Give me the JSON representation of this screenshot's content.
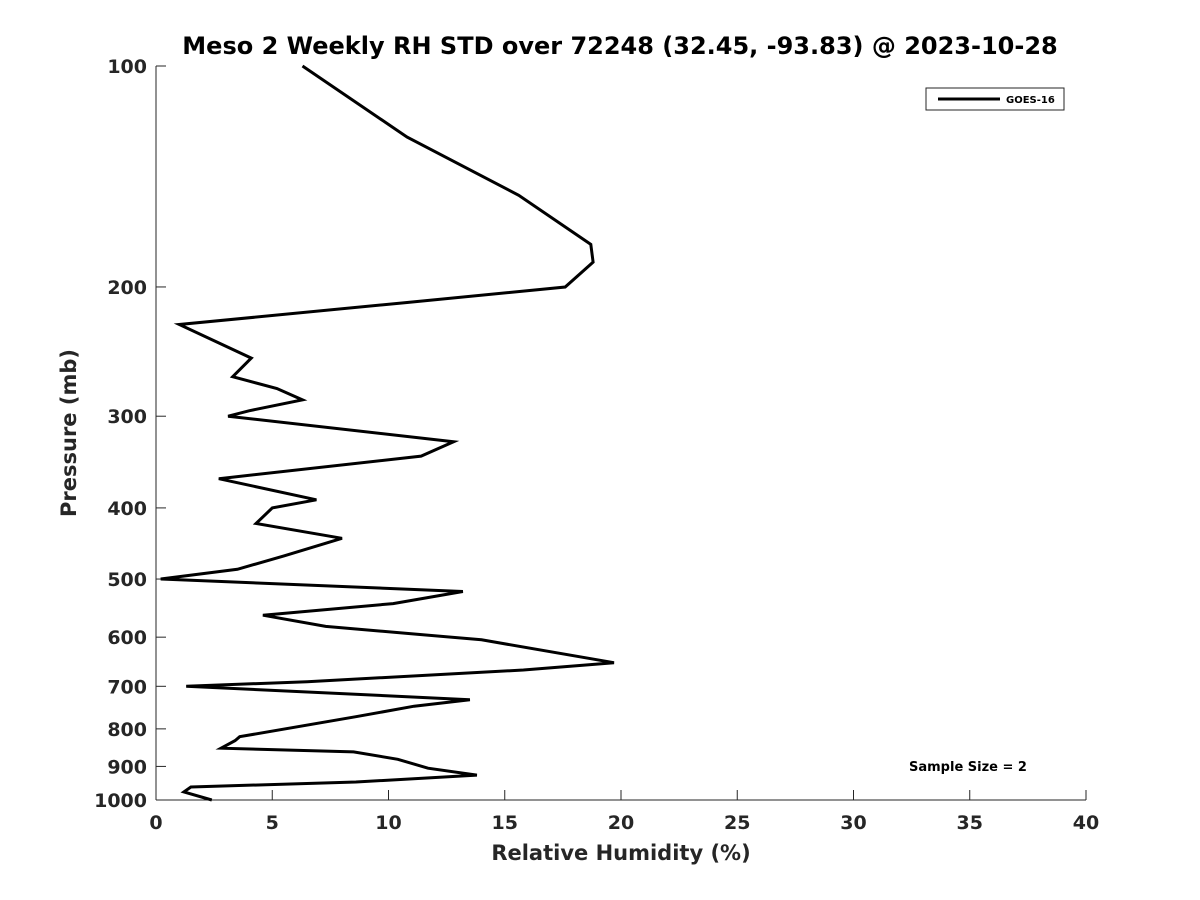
{
  "chart_data": {
    "type": "line",
    "title": "Meso 2 Weekly RH STD over 72248 (32.45, -93.83) @ 2023-10-28",
    "xlabel": "Relative Humidity (%)",
    "ylabel": "Pressure (mb)",
    "xlim": [
      0,
      40
    ],
    "ylim": [
      100,
      1000
    ],
    "y_scale": "log",
    "y_reversed": true,
    "x_ticks": [
      0,
      5,
      10,
      15,
      20,
      25,
      30,
      35,
      40
    ],
    "x_tick_labels": [
      "0",
      "5",
      "10",
      "15",
      "20",
      "25",
      "30",
      "35",
      "40"
    ],
    "y_ticks": [
      100,
      200,
      300,
      400,
      500,
      600,
      700,
      800,
      900,
      1000
    ],
    "y_tick_labels": [
      "100",
      "200",
      "300",
      "400",
      "500",
      "600",
      "700",
      "800",
      "900",
      "1000"
    ],
    "grid": false,
    "legend_position": "top-right",
    "series": [
      {
        "name": "GOES-16",
        "color": "#000000",
        "points": [
          [
            6.3,
            100
          ],
          [
            10.8,
            125
          ],
          [
            15.6,
            150
          ],
          [
            18.7,
            175
          ],
          [
            18.8,
            185
          ],
          [
            17.6,
            200
          ],
          [
            10.8,
            210
          ],
          [
            1.0,
            225
          ],
          [
            4.1,
            250
          ],
          [
            3.3,
            265
          ],
          [
            5.2,
            275
          ],
          [
            6.3,
            285
          ],
          [
            4.0,
            295
          ],
          [
            3.1,
            300
          ],
          [
            12.8,
            325
          ],
          [
            11.4,
            340
          ],
          [
            2.7,
            365
          ],
          [
            6.9,
            390
          ],
          [
            5.0,
            400
          ],
          [
            4.3,
            420
          ],
          [
            8.0,
            440
          ],
          [
            5.5,
            465
          ],
          [
            3.5,
            485
          ],
          [
            0.2,
            500
          ],
          [
            13.2,
            520
          ],
          [
            10.2,
            540
          ],
          [
            4.6,
            560
          ],
          [
            7.3,
            580
          ],
          [
            14.0,
            605
          ],
          [
            19.7,
            650
          ],
          [
            15.8,
            665
          ],
          [
            6.5,
            690
          ],
          [
            1.3,
            700
          ],
          [
            13.5,
            730
          ],
          [
            11.1,
            745
          ],
          [
            8.6,
            770
          ],
          [
            3.6,
            820
          ],
          [
            3.4,
            830
          ],
          [
            2.8,
            850
          ],
          [
            8.5,
            860
          ],
          [
            10.4,
            880
          ],
          [
            11.7,
            905
          ],
          [
            13.8,
            925
          ],
          [
            8.6,
            945
          ],
          [
            1.5,
            960
          ],
          [
            1.2,
            975
          ],
          [
            2.4,
            1000
          ]
        ]
      }
    ],
    "annotations": [
      "Sample Size = 2"
    ]
  }
}
